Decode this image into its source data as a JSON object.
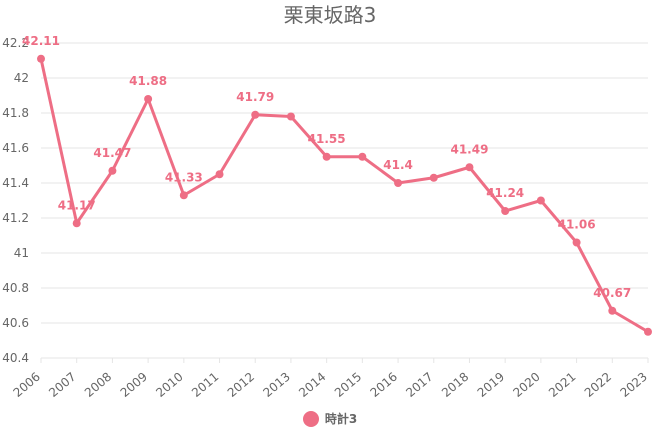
{
  "chart_data": {
    "type": "line",
    "title": "栗東坂路3",
    "xlabel": "",
    "ylabel": "",
    "categories": [
      "2006",
      "2007",
      "2008",
      "2009",
      "2010",
      "2011",
      "2012",
      "2013",
      "2014",
      "2015",
      "2016",
      "2017",
      "2018",
      "2019",
      "2020",
      "2021",
      "2022",
      "2023"
    ],
    "series": [
      {
        "name": "時計3",
        "values": [
          42.11,
          41.17,
          41.47,
          41.88,
          41.33,
          41.45,
          41.79,
          41.78,
          41.55,
          41.55,
          41.4,
          41.43,
          41.49,
          41.24,
          41.3,
          41.06,
          40.67,
          40.55
        ],
        "data_labels": [
          "42.11",
          "41.17",
          "41.47",
          "41.88",
          "41.33",
          null,
          "41.79",
          null,
          "41.55",
          null,
          "41.4",
          null,
          "41.49",
          "41.24",
          null,
          "41.06",
          "40.67",
          null
        ]
      }
    ],
    "ylim": [
      40.4,
      42.2
    ],
    "yticks": [
      "40.4",
      "40.6",
      "40.8",
      "41",
      "41.2",
      "41.4",
      "41.6",
      "41.8",
      "42",
      "42.2"
    ],
    "grid": true,
    "legend_position": "bottom",
    "colors": {
      "series": "#ee6e85",
      "grid": "#e5e5e5",
      "text": "#666666"
    }
  }
}
